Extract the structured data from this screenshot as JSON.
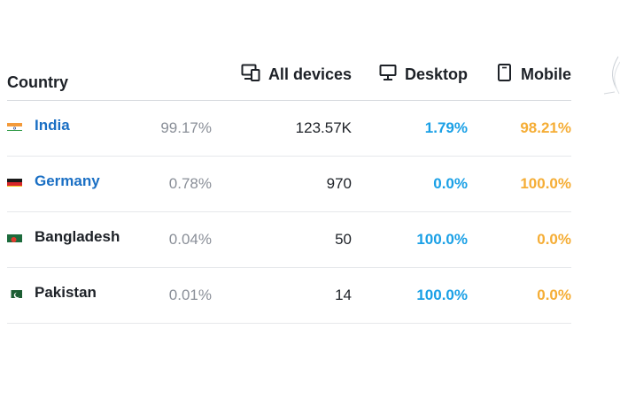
{
  "header": {
    "country": "Country",
    "all_devices": "All devices",
    "desktop": "Desktop",
    "mobile": "Mobile",
    "all_devices_icon": "devices-icon",
    "desktop_icon": "monitor-icon",
    "mobile_icon": "phone-icon"
  },
  "rows": [
    {
      "country": "India",
      "flag": "flag-india-icon",
      "share": "99.17%",
      "all": "123.57K",
      "desktop": "1.79%",
      "mobile": "98.21%",
      "is_link": true
    },
    {
      "country": "Germany",
      "flag": "flag-germany-icon",
      "share": "0.78%",
      "all": "970",
      "desktop": "0.0%",
      "mobile": "100.0%",
      "is_link": true
    },
    {
      "country": "Bangladesh",
      "flag": "flag-bangladesh-icon",
      "share": "0.04%",
      "all": "50",
      "desktop": "100.0%",
      "mobile": "0.0%",
      "is_link": false
    },
    {
      "country": "Pakistan",
      "flag": "flag-pakistan-icon",
      "share": "0.01%",
      "all": "14",
      "desktop": "100.0%",
      "mobile": "0.0%",
      "is_link": false
    }
  ],
  "colors": {
    "link": "#1a6fc4",
    "desktop": "#1aa0e6",
    "mobile": "#f5ad35",
    "muted": "#8a8f98",
    "text": "#1d2127"
  }
}
